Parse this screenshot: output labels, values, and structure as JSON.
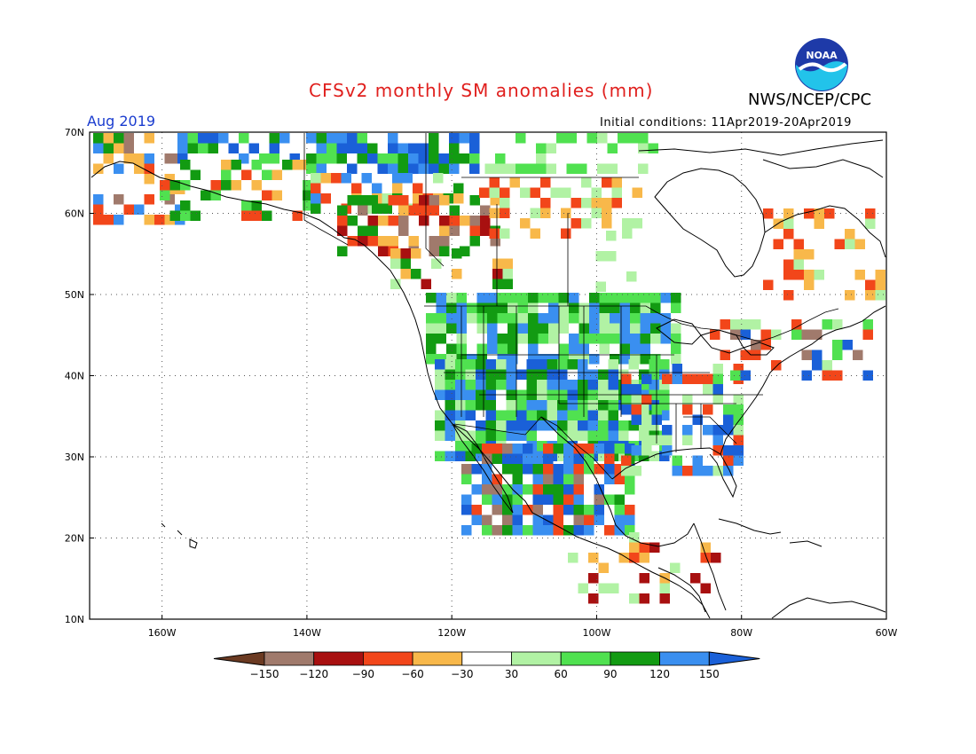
{
  "header": {
    "title": "CFSv2 monthly SM anomalies (mm)",
    "agency": "NWS/NCEP/CPC",
    "logo_text": "NOAA",
    "month": "Aug 2019",
    "initial_conditions": "Initial conditions: 11Apr2019-20Apr2019"
  },
  "map": {
    "lon_range": [
      -170,
      -60
    ],
    "lat_range": [
      10,
      70
    ],
    "lat_ticks": [
      {
        "value": 70,
        "label": "70N"
      },
      {
        "value": 60,
        "label": "60N"
      },
      {
        "value": 50,
        "label": "50N"
      },
      {
        "value": 40,
        "label": "40N"
      },
      {
        "value": 30,
        "label": "30N"
      },
      {
        "value": 20,
        "label": "20N"
      },
      {
        "value": 10,
        "label": "10N"
      }
    ],
    "lon_ticks": [
      {
        "value": -160,
        "label": "160W"
      },
      {
        "value": -140,
        "label": "140W"
      },
      {
        "value": -120,
        "label": "120W"
      },
      {
        "value": -100,
        "label": "100W"
      },
      {
        "value": -80,
        "label": "80W"
      },
      {
        "value": -60,
        "label": "60W"
      }
    ],
    "grid": "dotted"
  },
  "legend": {
    "bins": [
      {
        "color": "#6b3a22"
      },
      {
        "color": "#a07a6c"
      },
      {
        "color": "#a81010"
      },
      {
        "color": "#f2461a"
      },
      {
        "color": "#f8b84a"
      },
      {
        "color": "#ffffff"
      },
      {
        "color": "#b1f2a4"
      },
      {
        "color": "#50e150"
      },
      {
        "color": "#129b12"
      },
      {
        "color": "#3a8ff0"
      },
      {
        "color": "#1a60d8"
      }
    ],
    "labels": [
      "-150",
      "-120",
      "-90",
      "-60",
      "-30",
      "30",
      "60",
      "90",
      "120",
      "150"
    ]
  },
  "colors": {
    "title": "#e0201e",
    "month": "#1a3ccf"
  }
}
